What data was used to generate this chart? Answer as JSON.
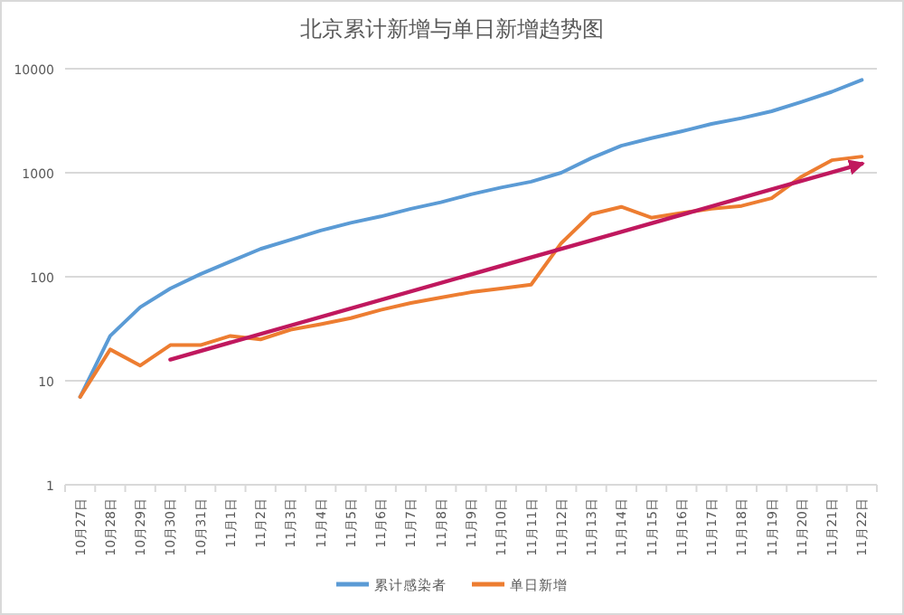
{
  "chart_data": {
    "type": "line",
    "title": "北京累计新增与单日新增趋势图",
    "categories": [
      "10月27日",
      "10月28日",
      "10月29日",
      "10月30日",
      "10月31日",
      "11月1日",
      "11月2日",
      "11月3日",
      "11月4日",
      "11月5日",
      "11月6日",
      "11月7日",
      "11月8日",
      "11月9日",
      "11月10日",
      "11月11日",
      "11月12日",
      "11月13日",
      "11月14日",
      "11月15日",
      "11月16日",
      "11月17日",
      "11月18日",
      "11月19日",
      "11月20日",
      "11月21日",
      "11月22日"
    ],
    "series": [
      {
        "name": "累计感染者",
        "color": "#5b9bd5",
        "values": [
          7,
          27,
          51,
          77,
          106,
          140,
          185,
          227,
          278,
          330,
          380,
          450,
          520,
          620,
          720,
          820,
          1000,
          1380,
          1820,
          2150,
          2500,
          2950,
          3350,
          3900,
          4800,
          6000,
          7800
        ]
      },
      {
        "name": "单日新增",
        "color": "#ed7d31",
        "values": [
          7,
          20,
          14,
          22,
          22,
          27,
          25,
          31,
          35,
          40,
          48,
          56,
          63,
          71,
          77,
          84,
          210,
          400,
          470,
          370,
          410,
          450,
          480,
          570,
          920,
          1320,
          1430
        ]
      },
      {
        "color": "#c0185e",
        "x": [
          "10月30日",
          "11月22日"
        ],
        "values": [
          16,
          1220
        ]
      }
    ],
    "log": true,
    "ylim": [
      1,
      10000
    ],
    "yticks": [
      1,
      10,
      100,
      1000,
      10000
    ],
    "grid": "y",
    "legend": "bottom",
    "marker": "none",
    "line_style": "solid"
  }
}
